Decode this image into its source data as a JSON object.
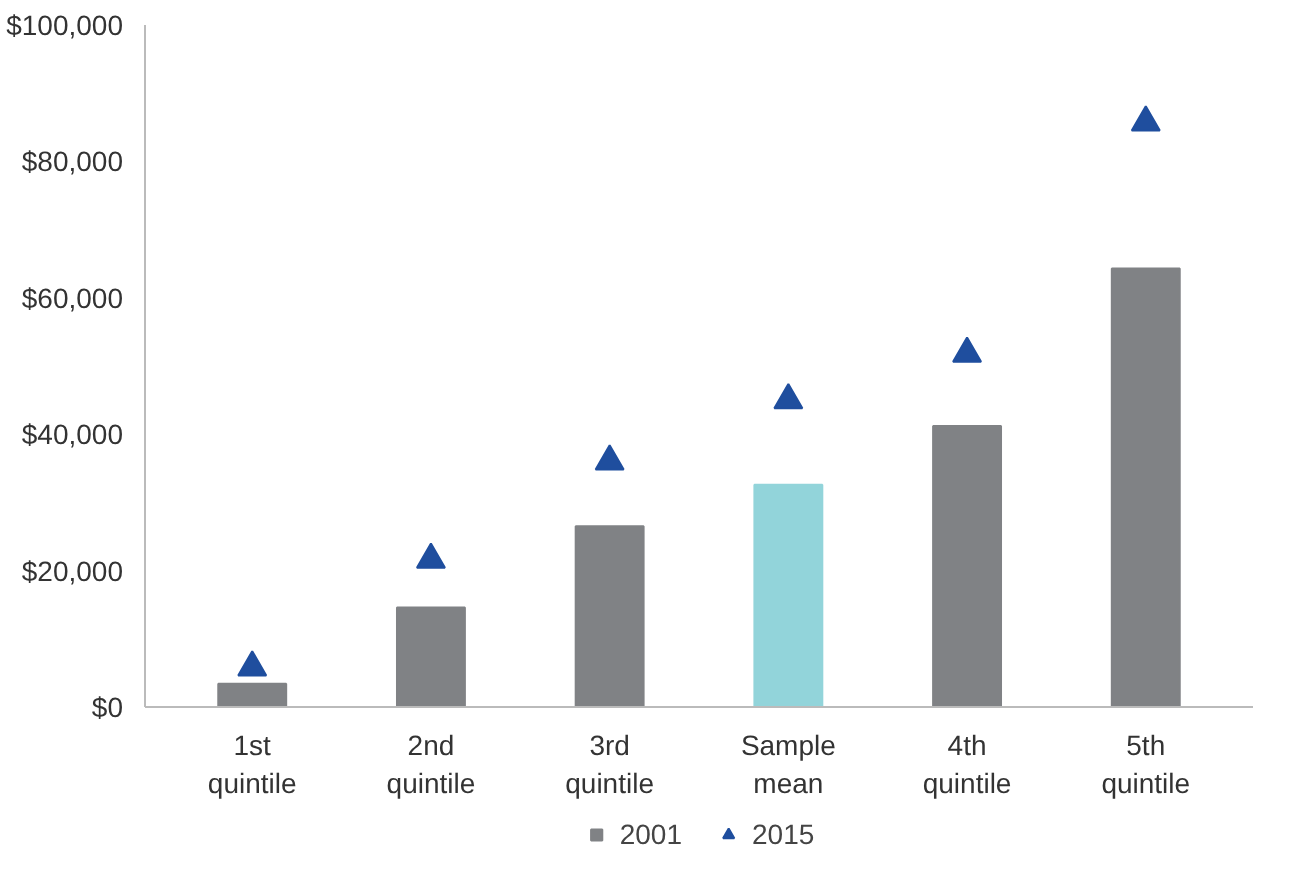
{
  "chart_data": {
    "type": "bar",
    "categories": [
      "1st\nquintile",
      "2nd\nquintile",
      "3rd\nquintile",
      "Sample\nmean",
      "4th\nquintile",
      "5th\nquintile"
    ],
    "series": [
      {
        "name": "2001",
        "color": "#808285",
        "colors": [
          "#808285",
          "#808285",
          "#808285",
          "#92d4da",
          "#808285",
          "#808285"
        ],
        "values": [
          3400,
          14600,
          26500,
          32600,
          41200,
          64300
        ]
      },
      {
        "name": "2015",
        "type": "scatter",
        "color": "#1f4e9e",
        "marker": "triangle",
        "values": [
          5800,
          21600,
          36000,
          45000,
          51800,
          85700
        ]
      }
    ],
    "ylim": [
      0,
      100000
    ],
    "yticks": [
      {
        "value": 0,
        "label": "$0"
      },
      {
        "value": 20000,
        "label": "$20,000"
      },
      {
        "value": 40000,
        "label": "$40,000"
      },
      {
        "value": 60000,
        "label": "$60,000"
      },
      {
        "value": 80000,
        "label": "$80,000"
      },
      {
        "value": 100000,
        "label": "$100,000"
      }
    ],
    "grid": false,
    "legend": "bottom"
  }
}
